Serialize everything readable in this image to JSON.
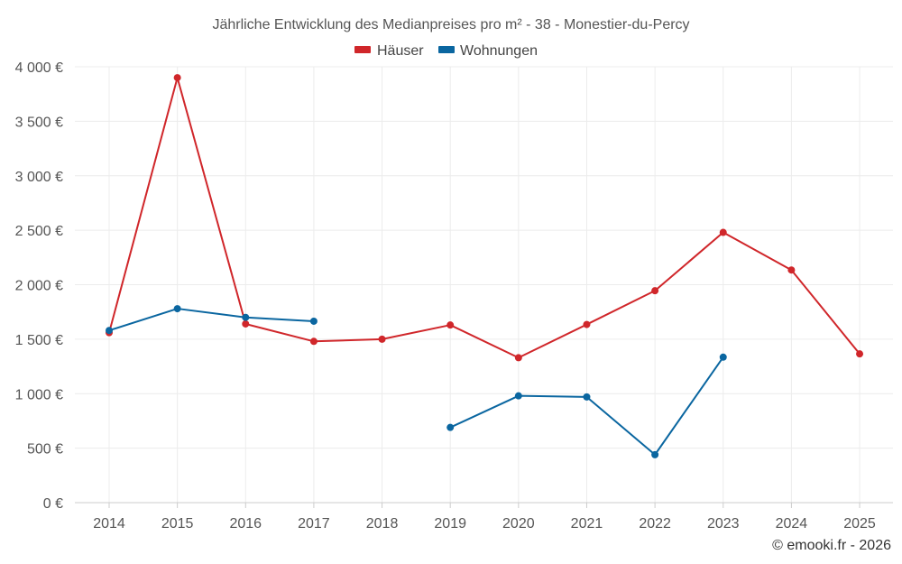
{
  "chart_data": {
    "type": "line",
    "title": "Jährliche Entwicklung des Medianpreises pro m² - 38 - Monestier-du-Percy",
    "categories": [
      "2014",
      "2015",
      "2016",
      "2017",
      "2018",
      "2019",
      "2020",
      "2021",
      "2022",
      "2023",
      "2024",
      "2025"
    ],
    "y_ticks": [
      0,
      500,
      1000,
      1500,
      2000,
      2500,
      3000,
      3500,
      4000
    ],
    "y_tick_labels": [
      "0 €",
      "500 €",
      "1 000 €",
      "1 500 €",
      "2 000 €",
      "2 500 €",
      "3 000 €",
      "3 500 €",
      "4 000 €"
    ],
    "ylim": [
      0,
      4000
    ],
    "grid": true,
    "legend_position": "top-center",
    "series": [
      {
        "name": "Häuser",
        "color": "#d0262a",
        "values": [
          1560,
          3900,
          1640,
          1480,
          1500,
          1630,
          1330,
          1635,
          1945,
          2480,
          2135,
          1365
        ]
      },
      {
        "name": "Wohnungen",
        "color": "#0a66a0",
        "values": [
          1580,
          1780,
          1700,
          1665,
          null,
          690,
          980,
          970,
          440,
          1335,
          null,
          null
        ]
      }
    ],
    "credit": "© emooki.fr - 2026"
  }
}
